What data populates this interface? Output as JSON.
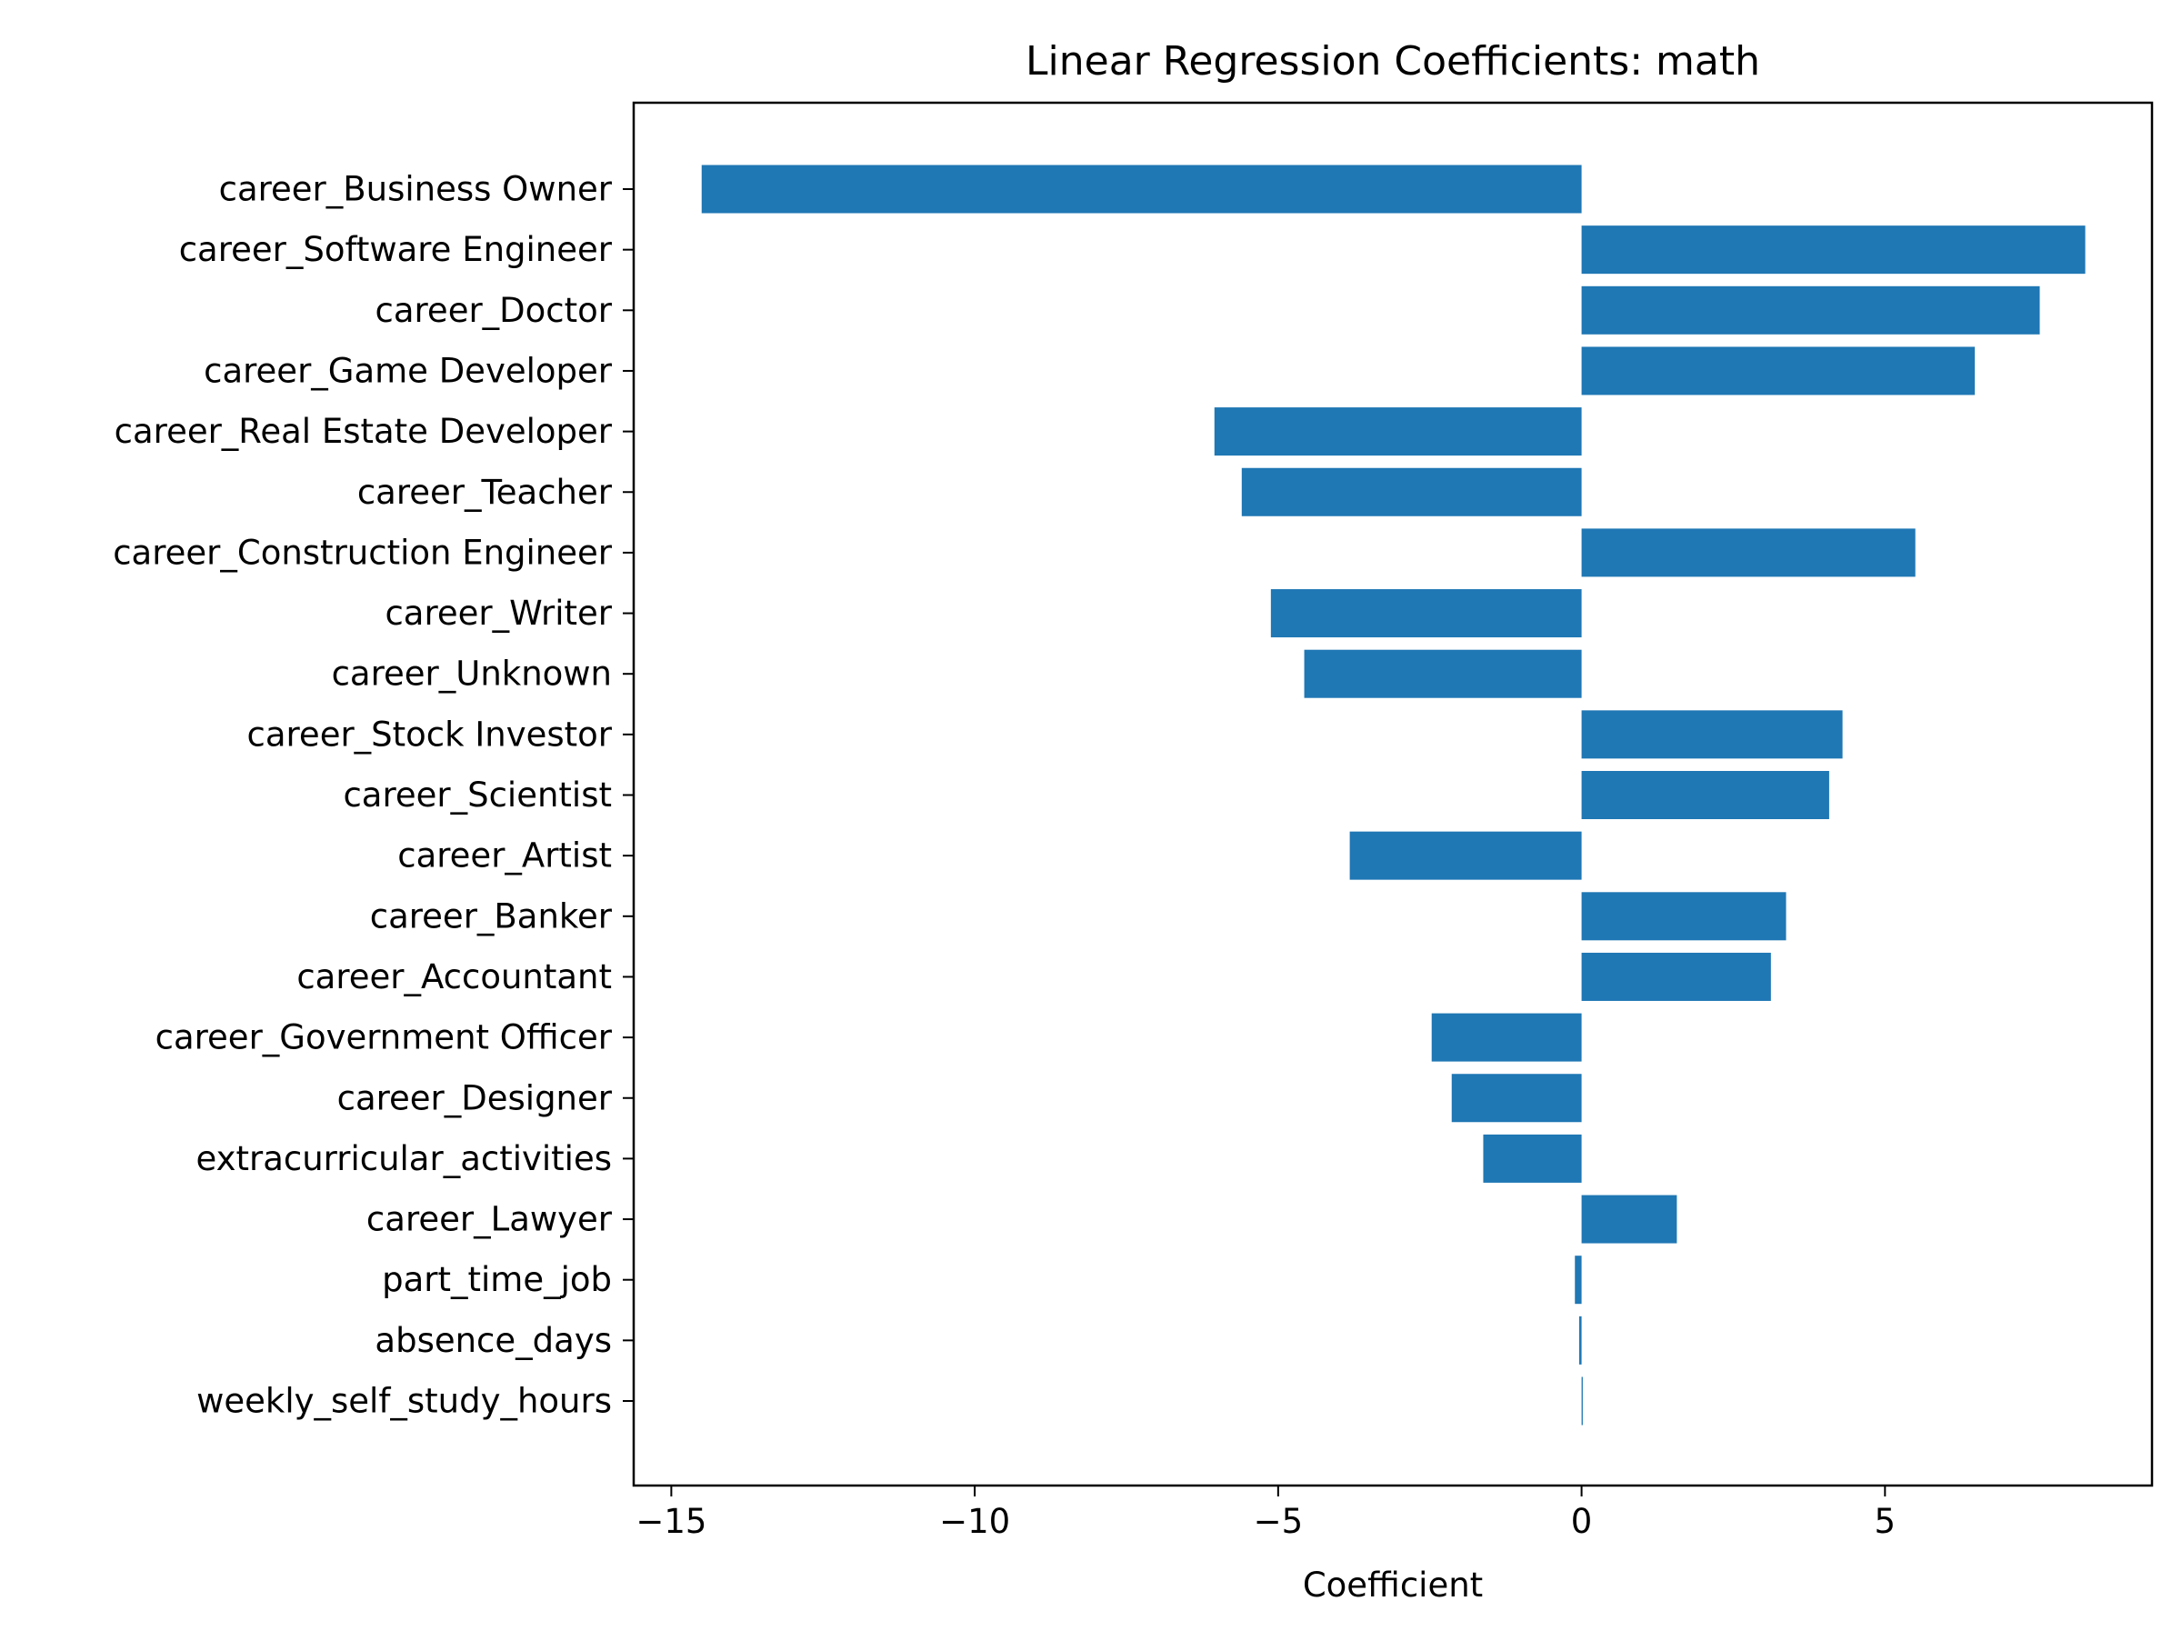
{
  "chart_data": {
    "type": "bar",
    "orientation": "horizontal",
    "title": "Linear Regression Coefficients: math",
    "xlabel": "Coefficient",
    "ylabel": "",
    "xlim": [
      -15.62,
      9.4
    ],
    "x_ticks": [
      -15,
      -10,
      -5,
      0,
      5
    ],
    "x_tick_labels": [
      "−15",
      "−10",
      "−5",
      "0",
      "5"
    ],
    "grid": false,
    "legend": "none",
    "bar_color": "#1f77b4",
    "categories": [
      "career_Business Owner",
      "career_Software Engineer",
      "career_Doctor",
      "career_Game Developer",
      "career_Real Estate Developer",
      "career_Teacher",
      "career_Construction Engineer",
      "career_Writer",
      "career_Unknown",
      "career_Stock Investor",
      "career_Scientist",
      "career_Artist",
      "career_Banker",
      "career_Accountant",
      "career_Government Officer",
      "career_Designer",
      "extracurricular_activities",
      "career_Lawyer",
      "part_time_job",
      "absence_days",
      "weekly_self_study_hours"
    ],
    "values": [
      -14.5,
      8.3,
      7.55,
      6.48,
      -6.05,
      -5.6,
      5.5,
      -5.12,
      -4.57,
      4.3,
      4.08,
      -3.82,
      3.37,
      3.12,
      -2.47,
      -2.14,
      -1.62,
      1.57,
      -0.11,
      -0.04,
      0.02
    ]
  }
}
